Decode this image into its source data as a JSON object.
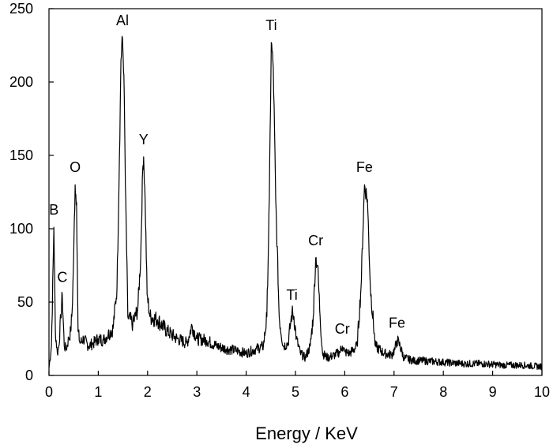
{
  "chart_data": {
    "type": "line",
    "title": "",
    "xlabel": "Energy / KeV",
    "ylabel": "",
    "xlim": [
      0,
      10
    ],
    "ylim": [
      0,
      250
    ],
    "x_ticks": [
      0,
      1,
      2,
      3,
      4,
      5,
      6,
      7,
      8,
      9,
      10
    ],
    "y_ticks": [
      0,
      50,
      100,
      150,
      200,
      250
    ],
    "grid": false,
    "legend": "none",
    "line_color": "#000000",
    "peaks": [
      {
        "label": "B",
        "x": 0.1,
        "y": 101
      },
      {
        "label": "C",
        "x": 0.27,
        "y": 55
      },
      {
        "label": "O",
        "x": 0.53,
        "y": 130
      },
      {
        "label": "Al",
        "x": 1.49,
        "y": 230
      },
      {
        "label": "Y",
        "x": 1.92,
        "y": 149
      },
      {
        "label": "Ti",
        "x": 4.51,
        "y": 227
      },
      {
        "label": "Ti",
        "x": 4.93,
        "y": 43
      },
      {
        "label": "Cr",
        "x": 5.41,
        "y": 80
      },
      {
        "label": "Cr",
        "x": 5.95,
        "y": 20
      },
      {
        "label": "Fe",
        "x": 6.4,
        "y": 130
      },
      {
        "label": "Fe",
        "x": 7.06,
        "y": 24
      }
    ],
    "series": [
      {
        "x": [
          0.0,
          0.05,
          0.1,
          0.13,
          0.17,
          0.2,
          0.24,
          0.27,
          0.31,
          0.35,
          0.4,
          0.44,
          0.47,
          0.5,
          0.53,
          0.56,
          0.59,
          0.63,
          0.7,
          0.8,
          0.9,
          1.0,
          1.1,
          1.2,
          1.3,
          1.38,
          1.43,
          1.46,
          1.49,
          1.52,
          1.55,
          1.6,
          1.7,
          1.8,
          1.86,
          1.9,
          1.92,
          1.95,
          1.99,
          2.05,
          2.2,
          2.4,
          2.6,
          2.8,
          2.9,
          3.0,
          3.2,
          3.4,
          3.6,
          3.8,
          4.0,
          4.2,
          4.35,
          4.42,
          4.47,
          4.51,
          4.55,
          4.6,
          4.67,
          4.75,
          4.85,
          4.9,
          4.93,
          4.97,
          5.02,
          5.1,
          5.2,
          5.3,
          5.36,
          5.41,
          5.45,
          5.5,
          5.55,
          5.65,
          5.8,
          5.9,
          5.95,
          6.0,
          6.1,
          6.25,
          6.33,
          6.4,
          6.46,
          6.52,
          6.62,
          6.8,
          6.95,
          7.02,
          7.06,
          7.1,
          7.2,
          7.4,
          7.6,
          8.0,
          8.4,
          8.8,
          9.2,
          9.6,
          10.0
        ],
        "y": [
          5,
          20,
          101,
          30,
          15,
          20,
          40,
          55,
          20,
          18,
          25,
          30,
          44,
          80,
          130,
          118,
          30,
          22,
          25,
          20,
          22,
          25,
          24,
          28,
          32,
          60,
          150,
          215,
          230,
          205,
          130,
          40,
          35,
          45,
          80,
          140,
          149,
          120,
          55,
          40,
          38,
          30,
          25,
          22,
          34,
          25,
          24,
          20,
          18,
          17,
          15,
          18,
          20,
          40,
          120,
          227,
          210,
          120,
          40,
          20,
          22,
          35,
          43,
          40,
          25,
          15,
          12,
          20,
          40,
          80,
          75,
          40,
          15,
          12,
          14,
          16,
          20,
          16,
          15,
          20,
          60,
          130,
          120,
          60,
          20,
          15,
          14,
          18,
          24,
          22,
          12,
          10,
          10,
          9,
          8,
          8,
          7,
          7,
          6
        ]
      }
    ]
  }
}
